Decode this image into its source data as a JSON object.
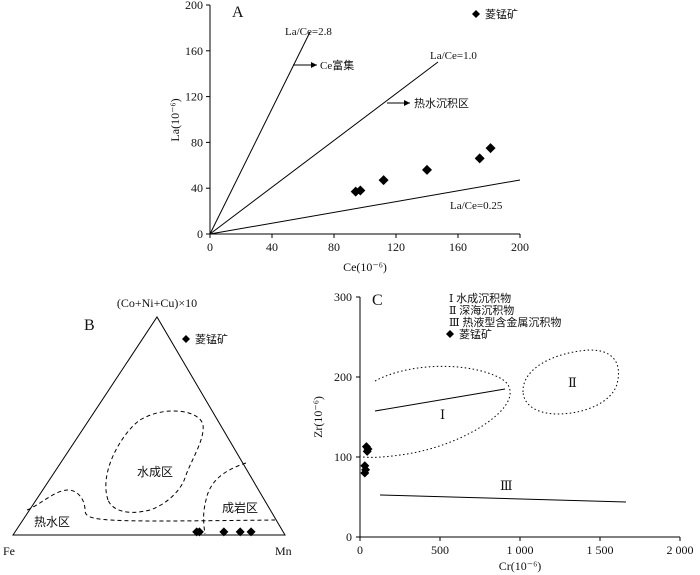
{
  "chart_data": [
    {
      "panel": "A",
      "type": "scatter",
      "xlabel": "Ce(10⁻⁶)",
      "ylabel": "La(10⁻⁶)",
      "xlim": [
        0,
        200
      ],
      "ylim": [
        0,
        200
      ],
      "xticks": [
        "0",
        "40",
        "80",
        "120",
        "160",
        "200"
      ],
      "yticks": [
        "0",
        "40",
        "80",
        "120",
        "160",
        "200"
      ],
      "legend": {
        "label": "菱锰矿",
        "placement": "top-right"
      },
      "series": [
        {
          "name": "菱锰矿",
          "x": [
            94,
            97,
            112,
            140,
            174,
            181
          ],
          "y": [
            37,
            38,
            47,
            56,
            66,
            75
          ]
        }
      ],
      "reference_lines": [
        {
          "label": "La/Ce=2.8",
          "slope": 2.8
        },
        {
          "label": "La/Ce=1.0",
          "slope": 1.0
        },
        {
          "label": "La/Ce=0.25",
          "slope": 0.25
        }
      ],
      "annotations": [
        "Ce富集",
        "热水沉积区"
      ]
    },
    {
      "panel": "B",
      "type": "scatter",
      "apex_labels": {
        "top": "(Co+Ni+Cu)×10",
        "left": "Fe",
        "right": "Mn"
      },
      "legend": {
        "label": "菱锰矿",
        "placement": "top-right"
      },
      "fields": [
        "水成区",
        "热水区",
        "成岩区"
      ],
      "series": [
        {
          "name": "菱锰矿",
          "ternary_fractions": [
            [
              0.01,
              0.32,
              0.67
            ],
            [
              0.01,
              0.22,
              0.77
            ],
            [
              0.01,
              0.16,
              0.83
            ],
            [
              0.01,
              0.12,
              0.87
            ],
            [
              0.01,
              0.31,
              0.68
            ]
          ]
        }
      ]
    },
    {
      "panel": "C",
      "type": "scatter",
      "xlabel": "Cr(10⁻⁶)",
      "ylabel": "Zr(10⁻⁶)",
      "xlim": [
        0,
        2000
      ],
      "ylim": [
        0,
        300
      ],
      "xticks": [
        "0",
        "500",
        "1 000",
        "1 500",
        "2 000"
      ],
      "yticks": [
        "0",
        "100",
        "200",
        "300"
      ],
      "legend_lines": [
        "Ⅰ 水成沉积物",
        "Ⅱ 深海沉积物",
        "Ⅲ 热液型含金属沉积物"
      ],
      "legend": {
        "label": "菱锰矿",
        "placement": "top-left"
      },
      "regions": [
        "Ⅰ",
        "Ⅱ",
        "Ⅲ"
      ],
      "series": [
        {
          "name": "菱锰矿",
          "x": [
            40,
            50,
            45,
            30,
            35,
            30
          ],
          "y": [
            113,
            110,
            107,
            89,
            84,
            80
          ]
        }
      ]
    }
  ]
}
